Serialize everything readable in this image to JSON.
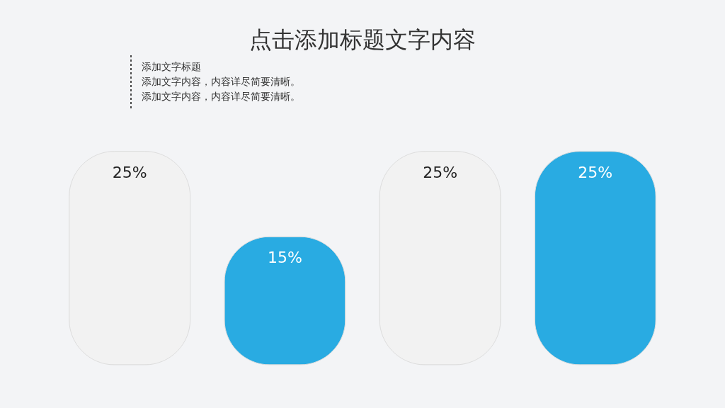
{
  "chart_data": {
    "type": "bar",
    "title": "点击添加标题文字内容",
    "subtitle": "添加文字标题",
    "annotations": [
      "添加文字内容，内容详尽简要清晰。",
      "添加文字内容，内容详尽简要清晰。"
    ],
    "categories": [
      null,
      null,
      null,
      null
    ],
    "values": [
      25,
      15,
      25,
      25
    ],
    "colors": [
      "#f2f2f2",
      "#29abe2",
      "#f2f2f2",
      "#29abe2"
    ],
    "value_labels": [
      "25%",
      "15%",
      "25%",
      "25%"
    ]
  }
}
